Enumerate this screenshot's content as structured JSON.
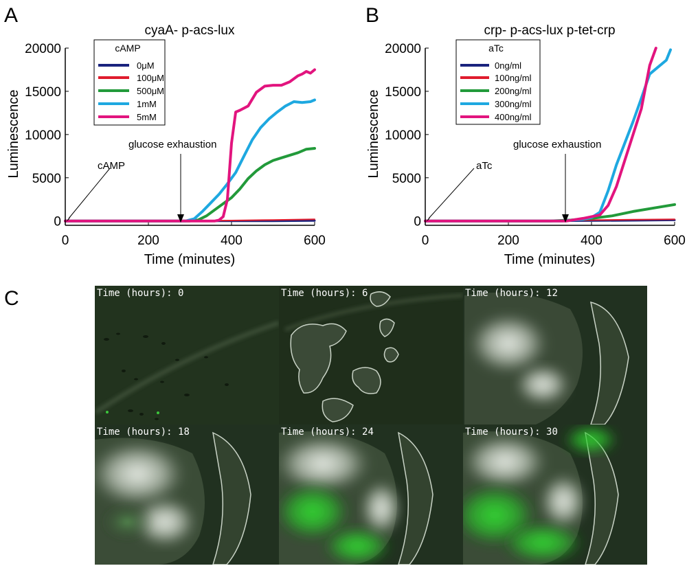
{
  "colors": {
    "axis": "#000000",
    "micro_bg": "#23331f",
    "micro_colony": "#3b4a37",
    "micro_green": "#33e133",
    "micro_white": "#f2f5f0"
  },
  "panels": {
    "a": "A",
    "b": "B",
    "c": "C"
  },
  "chart_data": [
    {
      "type": "line",
      "title": "cyaA- p-acs-lux",
      "xlabel": "Time (minutes)",
      "ylabel": "Luminescence",
      "xlim": [
        0,
        600
      ],
      "ylim": [
        -500,
        20000
      ],
      "xticks": [
        0,
        200,
        400,
        600
      ],
      "yticks": [
        0,
        5000,
        10000,
        15000,
        20000
      ],
      "xtick_labels": [
        "0",
        "200",
        "400",
        "600"
      ],
      "ytick_labels": [
        "0",
        "5000",
        "10000",
        "15000",
        "20000"
      ],
      "legend": {
        "title": "cAMP",
        "position": "top-left"
      },
      "series": [
        {
          "name": "0μM",
          "color": "#1a237e",
          "width": 3,
          "x": [
            0,
            300,
            500,
            600
          ],
          "y": [
            0,
            0,
            0,
            30
          ]
        },
        {
          "name": "100μM",
          "color": "#e01b2d",
          "width": 2,
          "x": [
            0,
            300,
            400,
            500,
            600
          ],
          "y": [
            0,
            0,
            60,
            120,
            200
          ]
        },
        {
          "name": "500μM",
          "color": "#229a3a",
          "width": 4,
          "x": [
            0,
            300,
            320,
            340,
            360,
            380,
            400,
            420,
            440,
            460,
            480,
            500,
            520,
            540,
            560,
            580,
            600
          ],
          "y": [
            0,
            0,
            120,
            600,
            1300,
            2000,
            2700,
            3700,
            4900,
            5800,
            6500,
            7000,
            7300,
            7600,
            7900,
            8300,
            8400
          ]
        },
        {
          "name": "1mM",
          "color": "#1ea8e0",
          "width": 4,
          "x": [
            0,
            290,
            310,
            330,
            350,
            370,
            390,
            410,
            430,
            450,
            470,
            490,
            510,
            530,
            550,
            570,
            590,
            600
          ],
          "y": [
            0,
            0,
            250,
            1100,
            2100,
            3100,
            4300,
            5600,
            7500,
            9400,
            10800,
            11800,
            12600,
            13300,
            13800,
            13700,
            13800,
            14000
          ]
        },
        {
          "name": "5mM",
          "color": "#e2147e",
          "width": 4,
          "x": [
            0,
            360,
            370,
            380,
            390,
            400,
            410,
            420,
            440,
            460,
            480,
            500,
            520,
            540,
            560,
            570,
            580,
            590,
            600
          ],
          "y": [
            0,
            0,
            100,
            500,
            2500,
            9000,
            12600,
            12800,
            13300,
            14900,
            15600,
            15700,
            15700,
            16100,
            16800,
            17000,
            17300,
            17100,
            17500
          ]
        }
      ],
      "annotations": [
        {
          "text": "cAMP",
          "x": 0,
          "y": 0
        },
        {
          "text": "glucose exhaustion",
          "x": 280,
          "y": 0
        }
      ]
    },
    {
      "type": "line",
      "title": "crp- p-acs-lux p-tet-crp",
      "xlabel": "Time (minutes)",
      "ylabel": "Luminescence",
      "xlim": [
        0,
        600
      ],
      "ylim": [
        -500,
        20000
      ],
      "xticks": [
        0,
        200,
        400,
        600
      ],
      "yticks": [
        0,
        5000,
        10000,
        15000,
        20000
      ],
      "xtick_labels": [
        "0",
        "200",
        "400",
        "600"
      ],
      "ytick_labels": [
        "0",
        "5000",
        "10000",
        "15000",
        "20000"
      ],
      "legend": {
        "title": "aTc",
        "position": "top-left"
      },
      "series": [
        {
          "name": "0ng/ml",
          "color": "#1a237e",
          "width": 3,
          "x": [
            0,
            300,
            500,
            600
          ],
          "y": [
            0,
            0,
            60,
            100
          ]
        },
        {
          "name": "100ng/ml",
          "color": "#e01b2d",
          "width": 2,
          "x": [
            0,
            300,
            400,
            500,
            600
          ],
          "y": [
            0,
            0,
            100,
            150,
            200
          ]
        },
        {
          "name": "200ng/ml",
          "color": "#229a3a",
          "width": 4,
          "x": [
            0,
            300,
            350,
            400,
            450,
            500,
            550,
            600
          ],
          "y": [
            0,
            0,
            100,
            300,
            600,
            1100,
            1500,
            1900
          ]
        },
        {
          "name": "300ng/ml",
          "color": "#1ea8e0",
          "width": 4,
          "x": [
            0,
            330,
            380,
            400,
            420,
            440,
            460,
            480,
            500,
            520,
            540,
            560,
            580,
            590
          ],
          "y": [
            0,
            0,
            200,
            400,
            1000,
            3500,
            6500,
            9000,
            11500,
            14200,
            17000,
            17800,
            18600,
            19800
          ]
        },
        {
          "name": "400ng/ml",
          "color": "#e2147e",
          "width": 4,
          "x": [
            0,
            340,
            380,
            400,
            420,
            440,
            460,
            480,
            500,
            520,
            540,
            555
          ],
          "y": [
            0,
            0,
            300,
            500,
            700,
            1800,
            4000,
            7000,
            10000,
            13000,
            18000,
            20000
          ]
        }
      ],
      "annotations": [
        {
          "text": "aTc",
          "x": 0,
          "y": 0
        },
        {
          "text": "glucose exhaustion",
          "x": 340,
          "y": 0
        }
      ]
    }
  ],
  "micrographs": {
    "label_prefix": "Time (hours): ",
    "frames": [
      {
        "time": "0"
      },
      {
        "time": "6"
      },
      {
        "time": "12"
      },
      {
        "time": "18"
      },
      {
        "time": "24"
      },
      {
        "time": "30"
      }
    ]
  }
}
